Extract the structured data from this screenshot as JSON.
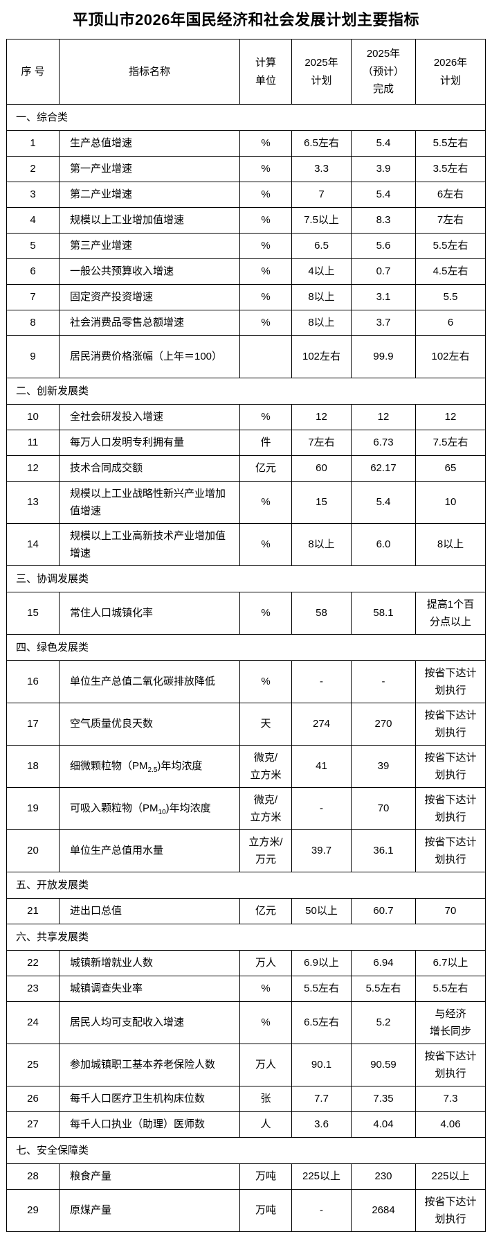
{
  "title": "平顶山市2026年国民经济和社会发展计划主要指标",
  "table": {
    "columns": [
      {
        "key": "no",
        "label": "序 号"
      },
      {
        "key": "name",
        "label": "指标名称"
      },
      {
        "key": "unit",
        "label": "计算\n单位"
      },
      {
        "key": "p2025",
        "label": "2025年\n计划"
      },
      {
        "key": "e2025",
        "label": "2025年\n（预计）\n完成"
      },
      {
        "key": "p2026",
        "label": "2026年\n计划"
      }
    ],
    "rows": [
      {
        "type": "section",
        "label": "一、综合类"
      },
      {
        "type": "data",
        "no": "1",
        "name": "生产总值增速",
        "unit": "%",
        "p2025": "6.5左右",
        "e2025": "5.4",
        "p2026": "5.5左右"
      },
      {
        "type": "data",
        "no": "2",
        "name": "第一产业增速",
        "unit": "%",
        "p2025": "3.3",
        "e2025": "3.9",
        "p2026": "3.5左右"
      },
      {
        "type": "data",
        "no": "3",
        "name": "第二产业增速",
        "unit": "%",
        "p2025": "7",
        "e2025": "5.4",
        "p2026": "6左右"
      },
      {
        "type": "data",
        "no": "4",
        "name": "规模以上工业增加值增速",
        "unit": "%",
        "p2025": "7.5以上",
        "e2025": "8.3",
        "p2026": "7左右"
      },
      {
        "type": "data",
        "no": "5",
        "name": "第三产业增速",
        "unit": "%",
        "p2025": "6.5",
        "e2025": "5.6",
        "p2026": "5.5左右"
      },
      {
        "type": "data",
        "no": "6",
        "name": "一般公共预算收入增速",
        "unit": "%",
        "p2025": "4以上",
        "e2025": "0.7",
        "p2026": "4.5左右"
      },
      {
        "type": "data",
        "no": "7",
        "name": "固定资产投资增速",
        "unit": "%",
        "p2025": "8以上",
        "e2025": "3.1",
        "p2026": "5.5"
      },
      {
        "type": "data",
        "no": "8",
        "name": "社会消费品零售总额增速",
        "unit": "%",
        "p2025": "8以上",
        "e2025": "3.7",
        "p2026": "6"
      },
      {
        "type": "data",
        "no": "9",
        "name": "居民消费价格涨幅（上年＝100）",
        "unit": "",
        "p2025": "102左右",
        "e2025": "99.9",
        "p2026": "102左右"
      },
      {
        "type": "section",
        "label": "二、创新发展类"
      },
      {
        "type": "data",
        "no": "10",
        "name": "全社会研发投入增速",
        "unit": "%",
        "p2025": "12",
        "e2025": "12",
        "p2026": "12"
      },
      {
        "type": "data",
        "no": "11",
        "name": "每万人口发明专利拥有量",
        "unit": "件",
        "p2025": "7左右",
        "e2025": "6.73",
        "p2026": "7.5左右"
      },
      {
        "type": "data",
        "no": "12",
        "name": "技术合同成交额",
        "unit": "亿元",
        "p2025": "60",
        "e2025": "62.17",
        "p2026": "65"
      },
      {
        "type": "data",
        "no": "13",
        "name": "规模以上工业战略性新兴产业增加值增速",
        "unit": "%",
        "p2025": "15",
        "e2025": "5.4",
        "p2026": "10"
      },
      {
        "type": "data",
        "no": "14",
        "name": "规模以上工业高新技术产业增加值增速",
        "unit": "%",
        "p2025": "8以上",
        "e2025": "6.0",
        "p2026": "8以上"
      },
      {
        "type": "section",
        "label": "三、协调发展类"
      },
      {
        "type": "data",
        "no": "15",
        "name": "常住人口城镇化率",
        "unit": "%",
        "p2025": "58",
        "e2025": "58.1",
        "p2026": "提高1个百\n分点以上"
      },
      {
        "type": "section",
        "label": "四、绿色发展类"
      },
      {
        "type": "data",
        "no": "16",
        "name": "单位生产总值二氧化碳排放降低",
        "unit": "%",
        "p2025": "-",
        "e2025": "-",
        "p2026": "按省下达计\n划执行"
      },
      {
        "type": "data",
        "no": "17",
        "name": "空气质量优良天数",
        "unit": "天",
        "p2025": "274",
        "e2025": "270",
        "p2026": "按省下达计\n划执行"
      },
      {
        "type": "data",
        "no": "18",
        "name": [
          {
            "t": "细微颗粒物（PM"
          },
          {
            "t": "2.5",
            "sub": true
          },
          {
            "t": ")年均浓度"
          }
        ],
        "unit": "微克/\n立方米",
        "p2025": "41",
        "e2025": "39",
        "p2026": "按省下达计\n划执行"
      },
      {
        "type": "data",
        "no": "19",
        "name": [
          {
            "t": "可吸入颗粒物（PM"
          },
          {
            "t": "10",
            "sub": true
          },
          {
            "t": ")年均浓度"
          }
        ],
        "unit": "微克/\n立方米",
        "p2025": "-",
        "e2025": "70",
        "p2026": "按省下达计\n划执行"
      },
      {
        "type": "data",
        "no": "20",
        "name": "单位生产总值用水量",
        "unit": "立方米/\n万元",
        "p2025": "39.7",
        "e2025": "36.1",
        "p2026": "按省下达计\n划执行"
      },
      {
        "type": "section",
        "label": "五、开放发展类"
      },
      {
        "type": "data",
        "no": "21",
        "name": "进出口总值",
        "unit": "亿元",
        "p2025": "50以上",
        "e2025": "60.7",
        "p2026": "70"
      },
      {
        "type": "section",
        "label": "六、共享发展类"
      },
      {
        "type": "data",
        "no": "22",
        "name": "城镇新增就业人数",
        "unit": "万人",
        "p2025": "6.9以上",
        "e2025": "6.94",
        "p2026": "6.7以上"
      },
      {
        "type": "data",
        "no": "23",
        "name": "城镇调查失业率",
        "unit": "%",
        "p2025": "5.5左右",
        "e2025": "5.5左右",
        "p2026": "5.5左右"
      },
      {
        "type": "data",
        "no": "24",
        "name": "居民人均可支配收入增速",
        "unit": "%",
        "p2025": "6.5左右",
        "e2025": "5.2",
        "p2026": "与经济\n增长同步"
      },
      {
        "type": "data",
        "no": "25",
        "name": "参加城镇职工基本养老保险人数",
        "unit": "万人",
        "p2025": "90.1",
        "e2025": "90.59",
        "p2026": "按省下达计\n划执行"
      },
      {
        "type": "data",
        "no": "26",
        "name": "每千人口医疗卫生机构床位数",
        "unit": "张",
        "p2025": "7.7",
        "e2025": "7.35",
        "p2026": "7.3"
      },
      {
        "type": "data",
        "no": "27",
        "name": "每千人口执业（助理）医师数",
        "unit": "人",
        "p2025": "3.6",
        "e2025": "4.04",
        "p2026": "4.06"
      },
      {
        "type": "section",
        "label": "七、安全保障类"
      },
      {
        "type": "data",
        "no": "28",
        "name": "粮食产量",
        "unit": "万吨",
        "p2025": "225以上",
        "e2025": "230",
        "p2026": "225以上"
      },
      {
        "type": "data",
        "no": "29",
        "name": "原煤产量",
        "unit": "万吨",
        "p2025": "-",
        "e2025": "2684",
        "p2026": "按省下达计\n划执行"
      }
    ]
  }
}
